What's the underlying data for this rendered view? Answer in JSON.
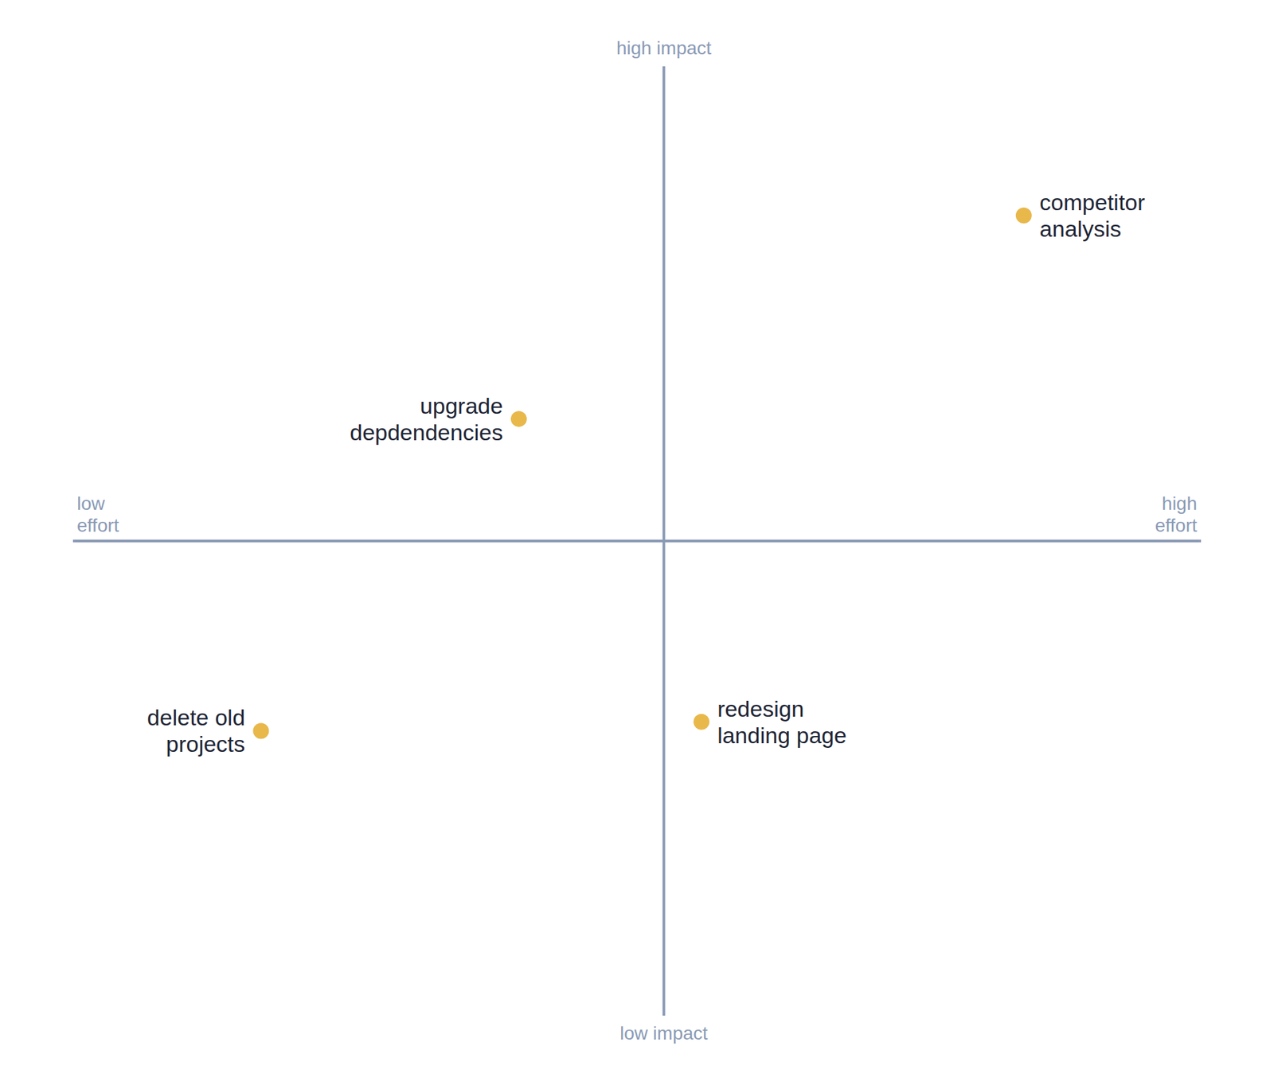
{
  "chart_data": {
    "type": "scatter",
    "x": [
      -0.22,
      0.72,
      0.12,
      -0.7
    ],
    "values": [
      0.27,
      0.72,
      -0.4,
      -0.42
    ],
    "labels": [
      "upgrade\ndepdendencies",
      "competitor\nanalysis",
      "redesign\nlanding page",
      "delete old\nprojects"
    ],
    "color": "#e8b84b",
    "xlim": [
      -1.05,
      1.05
    ],
    "ylim": [
      -1.05,
      1.05
    ],
    "axis_cross": {
      "x": 0.05,
      "y": 0
    },
    "axis_labels": {
      "y_high": "high impact",
      "y_low": "low impact",
      "x_low": "low\neffort",
      "x_high": "high\neffort"
    },
    "tick_labels": false,
    "grid": false
  }
}
